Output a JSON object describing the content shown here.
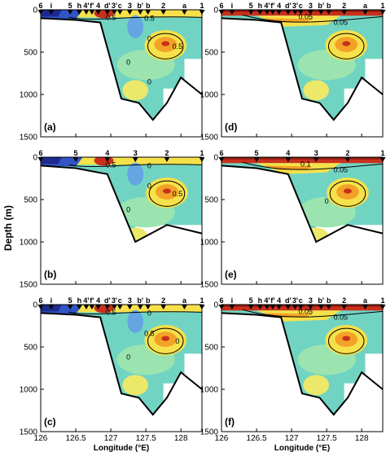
{
  "figure": {
    "ylabel": "Depth (m)",
    "xlabel": "Longitude (°E)"
  },
  "chart_data": [
    {
      "type": "heatmap",
      "panel": "(a)",
      "station_labels": [
        "6",
        "i",
        "5",
        "h",
        "4'",
        "f'",
        "4",
        "d'",
        "3'",
        "c",
        "3",
        "b'",
        "b",
        "2",
        "a",
        "1"
      ],
      "station_lon": [
        126.0,
        126.15,
        126.42,
        126.55,
        126.65,
        126.73,
        126.82,
        126.95,
        127.05,
        127.13,
        127.27,
        127.42,
        127.53,
        127.75,
        128.05,
        128.3
      ],
      "contour_labels": [
        "0.5",
        "0.5",
        "0",
        "0.5",
        "0",
        "0"
      ],
      "xlim": [
        126,
        128.3
      ],
      "ylim": [
        0,
        1500
      ],
      "xticks": [
        "126",
        "126.5",
        "127",
        "127.5",
        "128"
      ],
      "yticks": [
        "0",
        "500",
        "1000",
        "1500"
      ],
      "show_x_ticklabels": false,
      "bathymetry": [
        [
          126.0,
          100
        ],
        [
          126.5,
          120
        ],
        [
          126.85,
          150
        ],
        [
          127.0,
          600
        ],
        [
          127.15,
          1050
        ],
        [
          127.4,
          1100
        ],
        [
          127.6,
          1300
        ],
        [
          127.8,
          1100
        ],
        [
          128.0,
          800
        ],
        [
          128.15,
          900
        ],
        [
          128.3,
          1000
        ]
      ]
    },
    {
      "type": "heatmap",
      "panel": "(b)",
      "station_labels": [
        "6",
        "5",
        "4",
        "3",
        "2",
        "1"
      ],
      "station_lon": [
        126.0,
        126.5,
        126.95,
        127.35,
        127.8,
        128.3
      ],
      "contour_labels": [
        "0.5",
        "0",
        "0",
        "0.5",
        "0"
      ],
      "xlim": [
        126,
        128.3
      ],
      "ylim": [
        0,
        1500
      ],
      "xticks": [
        "126",
        "126.5",
        "127",
        "127.5",
        "128"
      ],
      "yticks": [
        "0",
        "500",
        "1000",
        "1500"
      ],
      "show_x_ticklabels": false,
      "bathymetry": [
        [
          126.0,
          100
        ],
        [
          126.5,
          130
        ],
        [
          126.95,
          200
        ],
        [
          127.35,
          1000
        ],
        [
          127.8,
          800
        ],
        [
          128.3,
          900
        ]
      ]
    },
    {
      "type": "heatmap",
      "panel": "(c)",
      "station_labels": [
        "6",
        "i",
        "5",
        "h",
        "4'",
        "f'",
        "4",
        "d'",
        "3'",
        "c",
        "3",
        "b'",
        "b",
        "2",
        "a",
        "1"
      ],
      "station_lon": [
        126.0,
        126.15,
        126.42,
        126.55,
        126.65,
        126.73,
        126.82,
        126.95,
        127.05,
        127.13,
        127.27,
        127.42,
        127.53,
        127.75,
        128.05,
        128.3
      ],
      "contour_labels": [
        "0.5",
        "0",
        "0.5",
        "0",
        "0"
      ],
      "xlim": [
        126,
        128.3
      ],
      "ylim": [
        0,
        1500
      ],
      "xticks": [
        "126",
        "126.5",
        "127",
        "127.5",
        "128"
      ],
      "yticks": [
        "0",
        "500",
        "1000",
        "1500"
      ],
      "show_x_ticklabels": true,
      "bathymetry": [
        [
          126.0,
          100
        ],
        [
          126.5,
          120
        ],
        [
          126.85,
          150
        ],
        [
          127.0,
          600
        ],
        [
          127.15,
          1050
        ],
        [
          127.4,
          1100
        ],
        [
          127.6,
          1300
        ],
        [
          127.8,
          1100
        ],
        [
          128.0,
          800
        ],
        [
          128.15,
          900
        ],
        [
          128.3,
          1000
        ]
      ]
    },
    {
      "type": "heatmap",
      "panel": "(d)",
      "station_labels": [
        "6",
        "i",
        "5",
        "h",
        "4'",
        "f'",
        "4",
        "d'",
        "3'",
        "c",
        "3",
        "b'",
        "b",
        "2",
        "a",
        "1"
      ],
      "station_lon": [
        126.0,
        126.15,
        126.42,
        126.55,
        126.65,
        126.73,
        126.82,
        126.95,
        127.05,
        127.13,
        127.27,
        127.42,
        127.53,
        127.75,
        128.05,
        128.3
      ],
      "contour_labels": [
        "0.05",
        "0.05"
      ],
      "xlim": [
        126,
        128.3
      ],
      "ylim": [
        0,
        1500
      ],
      "xticks": [
        "126",
        "126.5",
        "127",
        "127.5",
        "128"
      ],
      "yticks": [
        "0",
        "500",
        "1000",
        "1500"
      ],
      "show_x_ticklabels": false,
      "bathymetry": [
        [
          126.0,
          100
        ],
        [
          126.5,
          120
        ],
        [
          126.85,
          150
        ],
        [
          127.0,
          600
        ],
        [
          127.15,
          1050
        ],
        [
          127.4,
          1100
        ],
        [
          127.6,
          1300
        ],
        [
          127.8,
          1100
        ],
        [
          128.0,
          800
        ],
        [
          128.15,
          900
        ],
        [
          128.3,
          1000
        ]
      ]
    },
    {
      "type": "heatmap",
      "panel": "(e)",
      "station_labels": [
        "6",
        "5",
        "4",
        "3",
        "2",
        "1"
      ],
      "station_lon": [
        126.0,
        126.5,
        126.95,
        127.35,
        127.8,
        128.3
      ],
      "contour_labels": [
        "0.1",
        "0.05",
        "0"
      ],
      "xlim": [
        126,
        128.3
      ],
      "ylim": [
        0,
        1500
      ],
      "xticks": [
        "126",
        "126.5",
        "127",
        "127.5",
        "128"
      ],
      "yticks": [
        "0",
        "500",
        "1000",
        "1500"
      ],
      "show_x_ticklabels": false,
      "bathymetry": [
        [
          126.0,
          100
        ],
        [
          126.5,
          130
        ],
        [
          126.95,
          200
        ],
        [
          127.35,
          1000
        ],
        [
          127.8,
          800
        ],
        [
          128.3,
          900
        ]
      ]
    },
    {
      "type": "heatmap",
      "panel": "(f)",
      "station_labels": [
        "6",
        "i",
        "5",
        "h",
        "4'",
        "f'",
        "4",
        "d'",
        "3'",
        "c",
        "3",
        "b'",
        "b",
        "2",
        "a",
        "1"
      ],
      "station_lon": [
        126.0,
        126.15,
        126.42,
        126.55,
        126.65,
        126.73,
        126.82,
        126.95,
        127.05,
        127.13,
        127.27,
        127.42,
        127.53,
        127.75,
        128.05,
        128.3
      ],
      "contour_labels": [
        "0.05",
        "0.05"
      ],
      "xlim": [
        126,
        128.3
      ],
      "ylim": [
        0,
        1500
      ],
      "xticks": [
        "126",
        "126.5",
        "127",
        "127.5",
        "128"
      ],
      "yticks": [
        "0",
        "500",
        "1000",
        "1500"
      ],
      "show_x_ticklabels": true,
      "bathymetry": [
        [
          126.0,
          100
        ],
        [
          126.5,
          120
        ],
        [
          126.85,
          150
        ],
        [
          127.0,
          600
        ],
        [
          127.15,
          1050
        ],
        [
          127.4,
          1100
        ],
        [
          127.6,
          1300
        ],
        [
          127.8,
          1100
        ],
        [
          128.0,
          800
        ],
        [
          128.15,
          900
        ],
        [
          128.3,
          1000
        ]
      ]
    }
  ]
}
